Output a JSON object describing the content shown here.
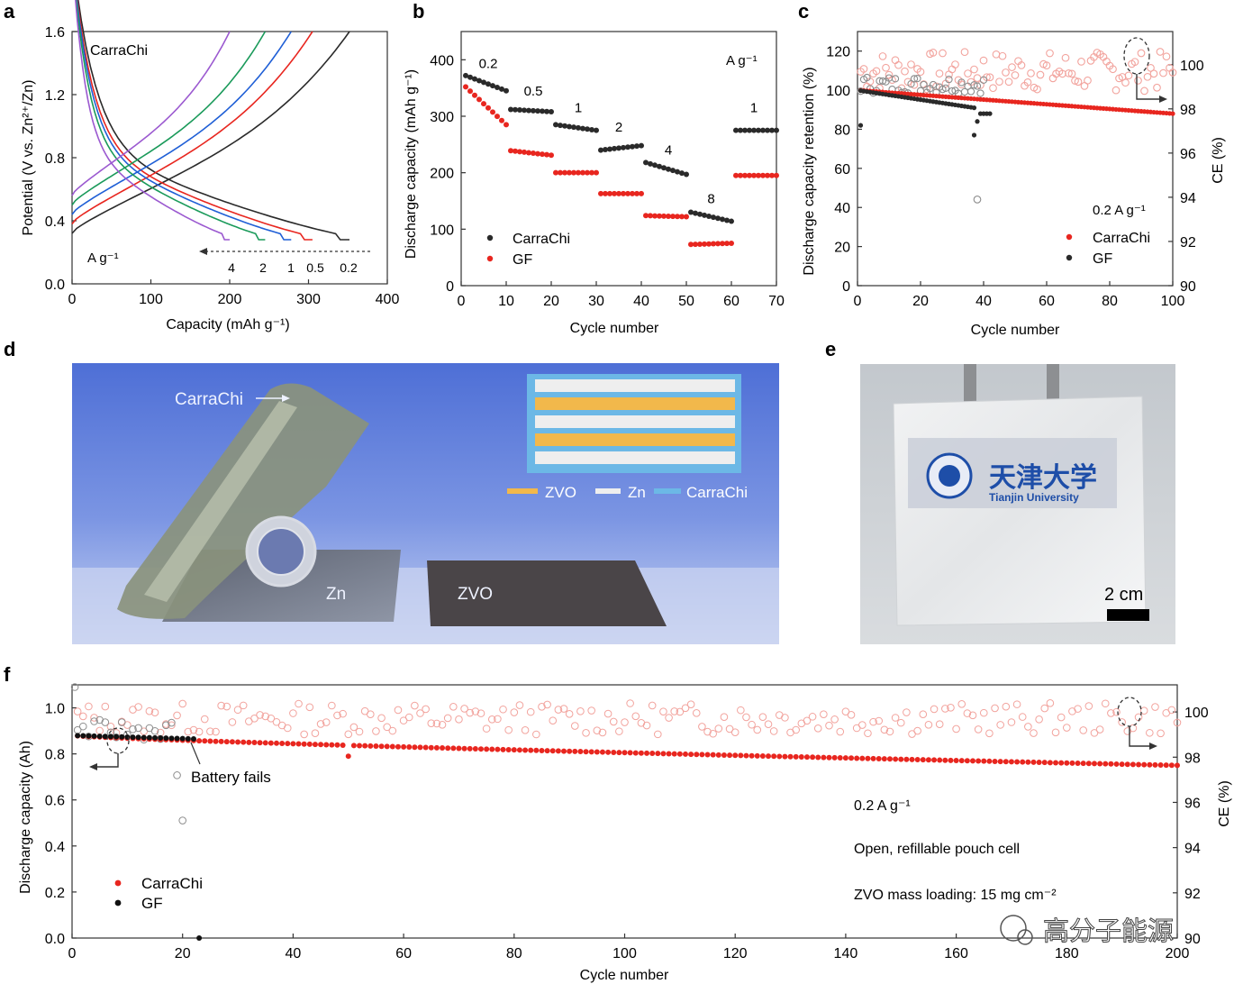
{
  "panel_labels": [
    "a",
    "b",
    "c",
    "d",
    "e",
    "f"
  ],
  "colors": {
    "carrachi": "#e8261f",
    "gf": "#2a2a2a",
    "zvo": "#f2b84b",
    "zn": "#eeeeee",
    "carrachi_layer": "#6cb8e6"
  },
  "chart_data": [
    {
      "type": "line",
      "panel": "a",
      "title": "CarraChi",
      "xlabel": "Capacity (mAh g⁻¹)",
      "ylabel": "Potential (V vs. Zn²⁺/Zn)",
      "xlim": [
        0,
        400
      ],
      "ylim": [
        0,
        1.6
      ],
      "xticks": [
        0,
        100,
        200,
        300,
        400
      ],
      "yticks": [
        0.0,
        0.4,
        0.8,
        1.2,
        1.6
      ],
      "rate_unit": "A g⁻¹",
      "rate_labels": [
        "4",
        "2",
        "1",
        "0.5",
        "0.2"
      ],
      "series": [
        {
          "name": "0.2",
          "color": "#2a2a2a",
          "capacity": 352
        },
        {
          "name": "0.5",
          "color": "#e8261f",
          "capacity": 305
        },
        {
          "name": "1",
          "color": "#1f5fd6",
          "capacity": 278
        },
        {
          "name": "2",
          "color": "#1a9a5a",
          "capacity": 245
        },
        {
          "name": "4",
          "color": "#9b59d0",
          "capacity": 200
        }
      ]
    },
    {
      "type": "scatter",
      "panel": "b",
      "xlabel": "Cycle number",
      "ylabel": "Discharge capacity (mAh g⁻¹)",
      "xlim": [
        0,
        70
      ],
      "ylim": [
        0,
        450
      ],
      "xticks": [
        0,
        10,
        20,
        30,
        40,
        50,
        60,
        70
      ],
      "yticks": [
        0,
        100,
        200,
        300,
        400
      ],
      "unit_label": "A g⁻¹",
      "rate_labels": [
        {
          "text": "0.2",
          "x": 6,
          "y": 385
        },
        {
          "text": "0.5",
          "x": 16,
          "y": 337
        },
        {
          "text": "1",
          "x": 26,
          "y": 307
        },
        {
          "text": "2",
          "x": 35,
          "y": 273
        },
        {
          "text": "4",
          "x": 46,
          "y": 232
        },
        {
          "text": "8",
          "x": 55.5,
          "y": 146
        },
        {
          "text": "1",
          "x": 65,
          "y": 307
        }
      ],
      "series": [
        {
          "name": "CarraChi",
          "color": "#2a2a2a",
          "segments": [
            [
              372,
              345
            ],
            [
              312,
              308
            ],
            [
              285,
              275
            ],
            [
              240,
              248
            ],
            [
              218,
              197
            ],
            [
              130,
              114
            ],
            [
              275,
              275
            ]
          ]
        },
        {
          "name": "GF",
          "color": "#e8261f",
          "segments": [
            [
              352,
              285
            ],
            [
              239,
              231
            ],
            [
              200,
              200
            ],
            [
              163,
              163
            ],
            [
              124,
              122
            ],
            [
              73,
              75
            ],
            [
              195,
              195
            ]
          ]
        }
      ],
      "legend": [
        "CarraChi",
        "GF"
      ]
    },
    {
      "type": "scatter",
      "panel": "c",
      "xlabel": "Cycle number",
      "ylabel": "Discharge capacity retention (%)",
      "y2label": "CE (%)",
      "xlim": [
        0,
        100
      ],
      "ylim": [
        0,
        130
      ],
      "y2lim": [
        90,
        101.5
      ],
      "xticks": [
        0,
        20,
        40,
        60,
        80,
        100
      ],
      "yticks": [
        0,
        20,
        40,
        60,
        80,
        100,
        120
      ],
      "y2ticks": [
        90,
        92,
        94,
        96,
        98,
        100
      ],
      "annotation": "0.2 A g⁻¹",
      "series": [
        {
          "name": "CarraChi",
          "color": "#e8261f",
          "retention_start": 100,
          "retention_end": 88,
          "ce_mean": 99.7
        },
        {
          "name": "GF",
          "color": "#2a2a2a",
          "retention_start": 100,
          "retention_end": 91,
          "fail_cycle": 42,
          "ce_mean": 99.1
        }
      ],
      "legend": [
        "CarraChi",
        "GF"
      ]
    },
    {
      "type": "scatter",
      "panel": "f",
      "xlabel": "Cycle number",
      "ylabel": "Discharge capacity (Ah)",
      "y2label": "CE (%)",
      "xlim": [
        0,
        200
      ],
      "ylim": [
        0,
        1.1
      ],
      "y2lim": [
        90,
        101.2
      ],
      "xticks": [
        0,
        20,
        40,
        60,
        80,
        100,
        120,
        140,
        160,
        180,
        200
      ],
      "yticks": [
        0.0,
        0.2,
        0.4,
        0.6,
        0.8,
        1.0
      ],
      "y2ticks": [
        90,
        92,
        94,
        96,
        98,
        100
      ],
      "annotations": [
        "Battery fails",
        "0.2 A g⁻¹",
        "Open, refillable pouch cell",
        "ZVO mass loading: 15 mg cm⁻²"
      ],
      "series": [
        {
          "name": "CarraChi",
          "color": "#e8261f",
          "capacity_start": 0.88,
          "capacity_end": 0.75,
          "ce_mean": 99.7
        },
        {
          "name": "GF",
          "color": "#2a2a2a",
          "capacity_start": 0.88,
          "capacity_end": 0.865,
          "fail_cycle": 22,
          "ce_mean": 99.2
        }
      ],
      "legend": [
        "CarraChi",
        "GF"
      ]
    }
  ],
  "panel_d": {
    "labels": [
      "CarraChi",
      "Zn",
      "ZVO"
    ],
    "legend": [
      "ZVO",
      "Zn",
      "CarraChi"
    ]
  },
  "panel_e": {
    "label_cn": "天津大学",
    "label_en": "Tianjin University",
    "scale": "2 cm"
  },
  "watermark": "高分子能源"
}
